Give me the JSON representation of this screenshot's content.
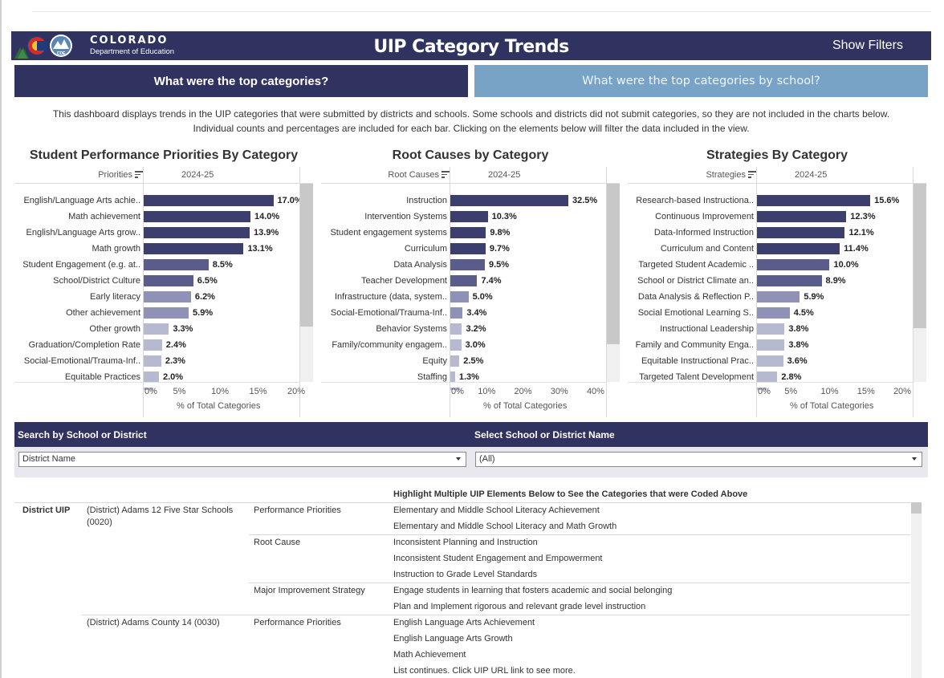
{
  "header": {
    "logo_title": "COLORADO",
    "logo_subtitle": "Department of Education",
    "title": "UIP Category Trends",
    "show_filters": "Show Filters"
  },
  "tabs": [
    {
      "label": "What were the top categories?",
      "active": true
    },
    {
      "label": "What were the top categories by school?",
      "active": false
    }
  ],
  "description": [
    "This dashboard displays trends in the UIP categories that were submitted by districts and schools. Some schools and districts did not submit categories, so they are not included in the charts below.",
    "Individual counts and percentages are included for each bar. Clicking on the elements below will filter the data included in the view."
  ],
  "colors": {
    "navy": "#30325f",
    "bar_dark": "#3c3e6e",
    "bar_mid": "#5a5c8c",
    "bar_soft": "#8f91b6",
    "bar_light": "#b7b9d0",
    "tab_inactive": "#79a3c6"
  },
  "chart_data": [
    {
      "type": "bar",
      "orientation": "horizontal",
      "title": "Student Performance Priorities By Category",
      "row_header": "Priorities",
      "column_header": "2024-25",
      "xlabel": "% of Total Categories",
      "xlim": [
        0,
        20
      ],
      "ticks": [
        "0%",
        "5%",
        "10%",
        "15%",
        "20%"
      ],
      "categories": [
        "English/Language Arts achie..",
        "Math achievement",
        "English/Language Arts grow..",
        "Math growth",
        "Student Engagement (e.g. at..",
        "School/District Culture",
        "Early literacy",
        "Other achievement",
        "Other growth",
        "Graduation/Completion Rate",
        "Social-Emotional/Trauma-Inf..",
        "Equitable Practices"
      ],
      "values": [
        17.0,
        14.0,
        13.9,
        13.1,
        8.5,
        6.5,
        6.2,
        5.9,
        3.3,
        2.4,
        2.3,
        2.0
      ],
      "labels": [
        "17.0%",
        "14.0%",
        "13.9%",
        "13.1%",
        "8.5%",
        "6.5%",
        "6.2%",
        "5.9%",
        "3.3%",
        "2.4%",
        "2.3%",
        "2.0%"
      ]
    },
    {
      "type": "bar",
      "orientation": "horizontal",
      "title": "Root Causes by Category",
      "row_header": "Root Causes",
      "column_header": "2024-25",
      "xlabel": "% of Total Categories",
      "xlim": [
        0,
        42
      ],
      "ticks": [
        "0%",
        "10%",
        "20%",
        "30%",
        "40%"
      ],
      "categories": [
        "Instruction",
        "Intervention Systems",
        "Student engagement systems",
        "Curriculum",
        "Data Analysis",
        "Teacher Development",
        "Infrastructure (data, system..",
        "Social-Emotional/Trauma-Inf..",
        "Behavior Systems",
        "Family/community engagem..",
        "Equity",
        "Staffing"
      ],
      "values": [
        32.5,
        10.3,
        9.8,
        9.7,
        9.5,
        7.4,
        5.0,
        3.4,
        3.2,
        3.0,
        2.5,
        1.3
      ],
      "labels": [
        "32.5%",
        "10.3%",
        "9.8%",
        "9.7%",
        "9.5%",
        "7.4%",
        "5.0%",
        "3.4%",
        "3.2%",
        "3.0%",
        "2.5%",
        "1.3%"
      ]
    },
    {
      "type": "bar",
      "orientation": "horizontal",
      "title": "Strategies By Category",
      "row_header": "Strategies",
      "column_header": "2024-25",
      "xlabel": "% of Total Categories",
      "xlim": [
        0,
        21
      ],
      "ticks": [
        "0%",
        "5%",
        "10%",
        "15%",
        "20%"
      ],
      "categories": [
        "Research-based Instructiona..",
        "Continuous Improvement",
        "Data-Informed Instruction",
        "Curriculum and Content",
        "Targeted Student Academic ..",
        "School or District Climate an..",
        "Data Analysis & Reflection P..",
        "Social Emotional Learning S..",
        "Instructional Leadership",
        "Family and Community Enga..",
        "Equitable Instructional Prac..",
        "Targeted Talent Development"
      ],
      "values": [
        15.6,
        12.3,
        12.1,
        11.4,
        10.0,
        8.9,
        5.9,
        4.5,
        3.8,
        3.8,
        3.6,
        2.8
      ],
      "labels": [
        "15.6%",
        "12.3%",
        "12.1%",
        "11.4%",
        "10.0%",
        "8.9%",
        "5.9%",
        "4.5%",
        "3.8%",
        "3.8%",
        "3.6%",
        "2.8%"
      ]
    }
  ],
  "filters": {
    "search_label": "Search by School or District",
    "search_value": "District Name",
    "select_label": "Select School or District Name",
    "select_value": "(All)"
  },
  "table": {
    "header": "Highlight Multiple UIP Elements Below to See the Categories that were Coded Above",
    "level": "District UIP",
    "groups": [
      {
        "name": "(District) Adams 12 Five Star Schools (0020)",
        "elements": [
          {
            "type": "Performance Priorities",
            "items": [
              "Elementary and Middle School Literacy Achievement",
              "Elementary and Middle School Literacy and Math Growth"
            ]
          },
          {
            "type": "Root Cause",
            "items": [
              "Inconsistent Planning and Instruction",
              "Inconsistent Student Engagement and Empowerment",
              "Instruction to Grade Level Standards"
            ]
          },
          {
            "type": "Major Improvement Strategy",
            "items": [
              "Engage students in learning that fosters academic and social belonging",
              "Plan and Implement rigorous and relevant grade level instruction"
            ]
          }
        ]
      },
      {
        "name": "(District) Adams County 14 (0030)",
        "elements": [
          {
            "type": "Performance Priorities",
            "items": [
              "English Language Arts Achievement",
              "English Language Arts Growth",
              "Math Achievement",
              "List continues. Click UIP URL link to see more."
            ]
          }
        ]
      }
    ]
  }
}
